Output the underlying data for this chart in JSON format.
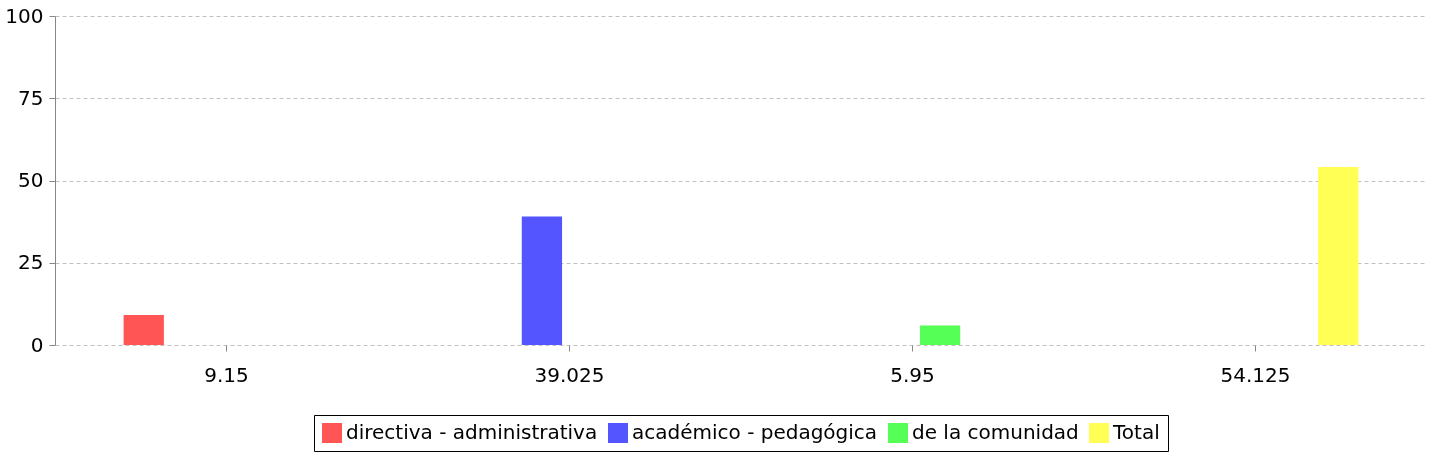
{
  "chart_data": {
    "type": "bar",
    "categories": [
      "9.15",
      "39.025",
      "5.95",
      "54.125"
    ],
    "series": [
      {
        "name": "directiva - administrativa",
        "color": "#ff5555",
        "values": [
          9.15,
          null,
          null,
          null
        ]
      },
      {
        "name": "académico - pedagógica",
        "color": "#5555ff",
        "values": [
          null,
          39.025,
          null,
          null
        ]
      },
      {
        "name": "de la comunidad",
        "color": "#55ff55",
        "values": [
          null,
          null,
          5.95,
          null
        ]
      },
      {
        "name": "Total",
        "color": "#ffff55",
        "values": [
          null,
          null,
          null,
          54.125
        ]
      }
    ],
    "ylim": [
      0,
      100
    ],
    "yticks": [
      0,
      25,
      50,
      75,
      100
    ],
    "grid": "y",
    "legend": "bottom"
  }
}
